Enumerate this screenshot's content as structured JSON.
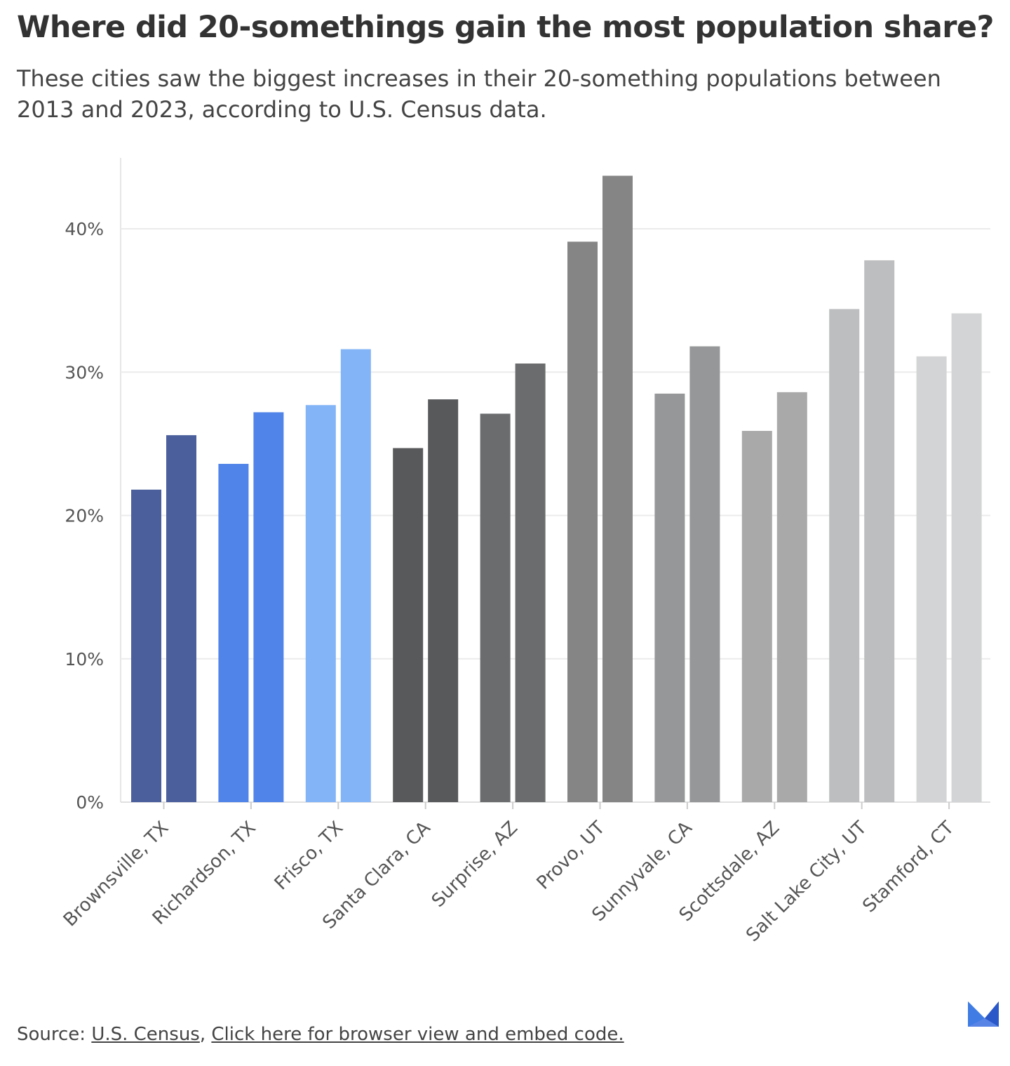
{
  "title": "Where did 20-somethings gain the most population share?",
  "subtitle": "These cities saw the biggest increases in their 20-something populations between 2013 and 2023, according to U.S. Census data.",
  "footer": {
    "source_prefix": "Source:",
    "source_link": "U.S. Census",
    "separator": ",",
    "embed_link": "Click here for browser view and embed code."
  },
  "logo": {
    "icon": "stacker-logo-icon"
  },
  "chart_data": {
    "type": "bar",
    "title": "Where did 20-somethings gain the most population share?",
    "xlabel": "",
    "ylabel": "",
    "ylim": [
      0,
      45
    ],
    "yticks": [
      0,
      10,
      20,
      30,
      40
    ],
    "ytick_format": "{v}%",
    "grid": true,
    "legend": "none",
    "categories": [
      "Brownsville, TX",
      "Richardson, TX",
      "Frisco, TX",
      "Santa Clara, CA",
      "Surprise, AZ",
      "Provo, UT",
      "Sunnyvale, CA",
      "Scottsdale, AZ",
      "Salt Lake City, UT",
      "Stamford, CT"
    ],
    "series": [
      {
        "values": [
          21.8,
          23.6,
          27.7,
          24.7,
          27.1,
          39.1,
          28.5,
          25.9,
          34.4,
          31.1
        ]
      },
      {
        "values": [
          25.6,
          27.2,
          31.6,
          28.1,
          30.6,
          43.7,
          31.8,
          28.6,
          37.8,
          34.1
        ]
      }
    ],
    "category_colors": [
      "#4a5f9c",
      "#5084e8",
      "#82b4f7",
      "#58595b",
      "#6b6c6e",
      "#858585",
      "#969798",
      "#a9a9aa",
      "#bdbebf",
      "#d3d4d5"
    ]
  }
}
